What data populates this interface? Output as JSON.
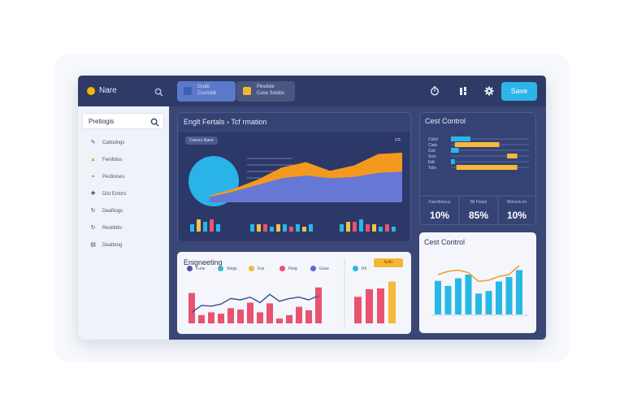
{
  "brand": {
    "name": "Nare",
    "logo_icon": "logo-dot-icon"
  },
  "topbar": {
    "tabs": [
      {
        "line1": "Gruib",
        "line2": "Cconslib"
      },
      {
        "line1": "Pesdoie",
        "line2": "Cuse Soidos"
      }
    ],
    "save_label": "Save",
    "icons": [
      "search-icon",
      "timer-icon",
      "columns-icon",
      "gear-icon"
    ]
  },
  "sidebar": {
    "search_text": "Pretiogis",
    "items": [
      {
        "label": "Cattodngs",
        "icon": "brush-icon"
      },
      {
        "label": "Fenifidos",
        "icon": "lock-icon"
      },
      {
        "label": "Pesfioises",
        "icon": "link-icon"
      },
      {
        "label": "Dist Entors",
        "icon": "puzzle-icon"
      },
      {
        "label": "Deafiiogs",
        "icon": "refresh-icon"
      },
      {
        "label": "Restitittis",
        "icon": "refresh-icon"
      },
      {
        "label": "Deatteng",
        "icon": "document-icon"
      }
    ]
  },
  "main_panel": {
    "title": "Englt Fertals › Tcf rmation",
    "chip": "Creiuru Nane",
    "area_series": [
      {
        "color": "#f39a1e",
        "values": [
          10,
          20,
          34,
          52,
          60,
          47,
          55,
          72,
          74
        ]
      },
      {
        "color": "#6677d6",
        "values": [
          8,
          16,
          26,
          36,
          40,
          36,
          38,
          44,
          46
        ]
      }
    ],
    "bars": [
      {
        "value": 3,
        "color": "#28b8e6"
      },
      {
        "value": 5,
        "color": "#f6c243"
      },
      {
        "value": 4,
        "color": "#28b8e6"
      },
      {
        "value": 5,
        "color": "#e9536f"
      },
      {
        "value": 3,
        "color": "#28b8e6"
      },
      {
        "value": 3,
        "color": "#28b8e6"
      },
      {
        "value": 3,
        "color": "#f6c243"
      },
      {
        "value": 3,
        "color": "#e9536f"
      },
      {
        "value": 2,
        "color": "#28b8e6"
      },
      {
        "value": 3,
        "color": "#f6c243"
      },
      {
        "value": 3,
        "color": "#28b8e6"
      },
      {
        "value": 2,
        "color": "#e9536f"
      },
      {
        "value": 3,
        "color": "#28b8e6"
      },
      {
        "value": 2,
        "color": "#f6c243"
      },
      {
        "value": 3,
        "color": "#28b8e6"
      },
      {
        "value": 3,
        "color": "#28b8e6"
      },
      {
        "value": 4,
        "color": "#f6c243"
      },
      {
        "value": 4,
        "color": "#e9536f"
      },
      {
        "value": 5,
        "color": "#28b8e6"
      },
      {
        "value": 3,
        "color": "#e9536f"
      },
      {
        "value": 3,
        "color": "#f6c243"
      },
      {
        "value": 2,
        "color": "#28b8e6"
      },
      {
        "value": 3,
        "color": "#e9536f"
      },
      {
        "value": 2,
        "color": "#28b8e6"
      }
    ]
  },
  "cost_panel": {
    "title": "Cest Control",
    "rows": [
      {
        "label": "Cebd",
        "start": 0.0,
        "end": 0.25,
        "color": "#2cb5ea"
      },
      {
        "label": "Ciais",
        "start": 0.05,
        "end": 0.62,
        "color": "#f6b93b"
      },
      {
        "label": "Gsil",
        "start": 0.0,
        "end": 0.1,
        "color": "#2cb5ea"
      },
      {
        "label": "Ssis",
        "start": 0.72,
        "end": 0.85,
        "color": "#f6b93b"
      },
      {
        "label": "Eiik",
        "start": 0.0,
        "end": 0.05,
        "color": "#2cb5ea"
      },
      {
        "label": "Tolis",
        "start": 0.07,
        "end": 0.85,
        "color": "#f6b93b"
      }
    ],
    "kpis": [
      {
        "label": "Fiseribinous",
        "value": "10%"
      },
      {
        "label": "Bil Fistsd",
        "value": "85%"
      },
      {
        "label": "Wiiturnicirn",
        "value": "10%"
      }
    ]
  },
  "engineering_panel": {
    "title": "Enigneeting",
    "badge": "Avllin",
    "legend": [
      {
        "label": "Fune",
        "color": "#4a5aa8"
      },
      {
        "label": "Stegs",
        "color": "#3fb6d9"
      },
      {
        "label": "Fus",
        "color": "#f6b93b"
      },
      {
        "label": "Fleig",
        "color": "#e9536f"
      },
      {
        "label": "Gose",
        "color": "#5a6ad0"
      },
      {
        "label": "Rit",
        "color": "#28b8e6"
      }
    ],
    "bars": [
      44,
      12,
      16,
      14,
      22,
      20,
      30,
      16,
      29,
      7,
      12,
      24,
      19,
      52
    ],
    "line": [
      16,
      26,
      25,
      28,
      36,
      34,
      38,
      30,
      42,
      32,
      36,
      38,
      34,
      40
    ],
    "right_bars": [
      {
        "value": 35,
        "color": "#e9536f"
      },
      {
        "value": 45,
        "color": "#e9536f"
      },
      {
        "value": 46,
        "color": "#e9536f"
      },
      {
        "value": 55,
        "color": "#f6b93b"
      }
    ]
  },
  "cost_chart_panel": {
    "title": "Cest Control",
    "bars": [
      53,
      45,
      57,
      63,
      33,
      37,
      52,
      59,
      70
    ],
    "line": [
      63,
      68,
      70,
      66,
      52,
      54,
      60,
      63,
      77
    ],
    "bar_color": "#28b8e6",
    "line_color": "#f39a1e"
  },
  "colors": {
    "accent": "#2cb5ea",
    "orange": "#f39a1e",
    "yellow": "#f6b93b",
    "red": "#e9536f"
  }
}
